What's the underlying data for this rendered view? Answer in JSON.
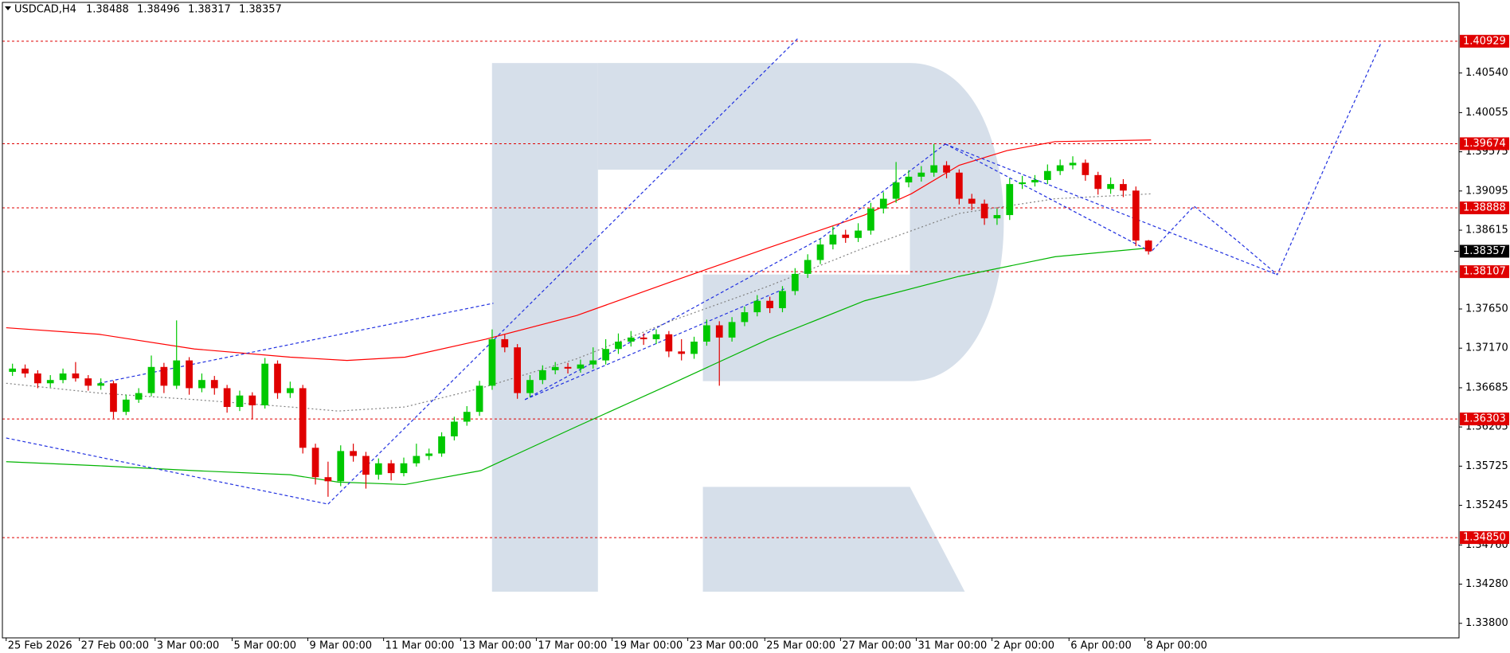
{
  "chart_data": {
    "type": "candlestick",
    "symbol": "USDCAD,H4",
    "up_color": "#00c800",
    "down_color": "#e00000",
    "ylim": [
      1.33622,
      1.41395
    ],
    "yticks": [
      {
        "value": 1.338,
        "label": "1.33800"
      },
      {
        "value": 1.3428,
        "label": "1.34280"
      },
      {
        "value": 1.3476,
        "label": "1.34760"
      },
      1.35245,
      1.35725,
      1.36205,
      1.36685,
      {
        "value": 1.3717,
        "label": "1.37170"
      },
      {
        "value": 1.3765,
        "label": "1.37650"
      },
      1.38615,
      1.39095,
      1.39575,
      1.40055,
      {
        "value": 1.4054,
        "label": "1.40540"
      }
    ],
    "xlim": [
      -0.8,
      114.6
    ],
    "xticks": [
      {
        "value": -0.5,
        "label": "25 Feb 2026"
      },
      {
        "value": 5.3,
        "label": "27 Feb 00:00"
      },
      {
        "value": 11.3,
        "label": "3 Mar 00:00"
      },
      {
        "value": 17.4,
        "label": "5 Mar 00:00"
      },
      {
        "value": 23.4,
        "label": "9 Mar 00:00"
      },
      {
        "value": 29.4,
        "label": "11 Mar 00:00"
      },
      {
        "value": 35.5,
        "label": "13 Mar 00:00"
      },
      {
        "value": 41.5,
        "label": "17 Mar 00:00"
      },
      {
        "value": 47.5,
        "label": "19 Mar 00:00"
      },
      {
        "value": 53.5,
        "label": "23 Mar 00:00"
      },
      {
        "value": 59.6,
        "label": "25 Mar 00:00"
      },
      {
        "value": 65.6,
        "label": "27 Mar 00:00"
      },
      {
        "value": 71.6,
        "label": "31 Mar 00:00"
      },
      {
        "value": 77.6,
        "label": "2 Apr 00:00"
      },
      {
        "value": 83.7,
        "label": "6 Apr 00:00"
      },
      {
        "value": 89.7,
        "label": "8 Apr 00:00"
      }
    ],
    "open": [
      1.3688,
      1.3692,
      1.3686,
      1.3674,
      1.3678,
      1.3686,
      1.368,
      1.3671,
      1.3674,
      1.3639,
      1.3654,
      1.3662,
      1.3694,
      1.3671,
      1.3702,
      1.3668,
      1.3678,
      1.3668,
      1.3645,
      1.3659,
      1.3647,
      1.3698,
      1.3662,
      1.3668,
      1.3595,
      1.3559,
      1.3554,
      1.3591,
      1.3585,
      1.3562,
      1.3576,
      1.3564,
      1.3576,
      1.3585,
      1.3588,
      1.3609,
      1.3627,
      1.3639,
      1.3671,
      1.3728,
      1.3718,
      1.3662,
      1.3678,
      1.369,
      1.3694,
      1.3692,
      1.3697,
      1.3702,
      1.3716,
      1.3725,
      1.373,
      1.3728,
      1.3734,
      1.3713,
      1.371,
      1.3725,
      1.3745,
      1.373,
      1.3749,
      1.3761,
      1.3775,
      1.3766,
      1.3787,
      1.3808,
      1.3825,
      1.3844,
      1.3856,
      1.3852,
      1.3861,
      1.3888,
      1.39,
      1.392,
      1.3927,
      1.3932,
      1.3941,
      1.3932,
      1.39,
      1.3894,
      1.3876,
      1.388,
      1.3918,
      1.392,
      1.3923,
      1.3934,
      1.3941,
      1.3944,
      1.3929,
      1.3912,
      1.3918,
      1.391,
      1.38488
    ],
    "high": [
      1.3698,
      1.3697,
      1.369,
      1.3684,
      1.3692,
      1.37,
      1.3684,
      1.368,
      1.3677,
      1.366,
      1.3668,
      1.3708,
      1.3699,
      1.3751,
      1.3706,
      1.3686,
      1.3683,
      1.3672,
      1.3665,
      1.3663,
      1.3705,
      1.3702,
      1.3676,
      1.3672,
      1.36,
      1.3578,
      1.3598,
      1.36,
      1.359,
      1.3582,
      1.358,
      1.3583,
      1.36,
      1.3594,
      1.3614,
      1.3633,
      1.3646,
      1.3677,
      1.374,
      1.3734,
      1.3722,
      1.3684,
      1.3696,
      1.37,
      1.3699,
      1.3703,
      1.3718,
      1.3728,
      1.3735,
      1.3738,
      1.3735,
      1.374,
      1.3738,
      1.3728,
      1.3731,
      1.3752,
      1.375,
      1.3755,
      1.3768,
      1.3782,
      1.378,
      1.3793,
      1.3815,
      1.3832,
      1.3851,
      1.3866,
      1.3862,
      1.387,
      1.3895,
      1.3908,
      1.3945,
      1.3935,
      1.394,
      1.3967,
      1.3946,
      1.3936,
      1.3906,
      1.3899,
      1.3888,
      1.3925,
      1.3928,
      1.3929,
      1.3942,
      1.3948,
      1.3952,
      1.3948,
      1.3933,
      1.3926,
      1.3924,
      1.3915,
      1.38496
    ],
    "low": [
      1.3683,
      1.3681,
      1.3668,
      1.3669,
      1.3674,
      1.3676,
      1.3665,
      1.3666,
      1.3631,
      1.3635,
      1.365,
      1.3658,
      1.3662,
      1.3667,
      1.366,
      1.3663,
      1.366,
      1.3638,
      1.364,
      1.363,
      1.3643,
      1.3655,
      1.3656,
      1.3588,
      1.355,
      1.3535,
      1.3548,
      1.3578,
      1.3545,
      1.3556,
      1.3555,
      1.356,
      1.3572,
      1.358,
      1.3584,
      1.3604,
      1.3622,
      1.3634,
      1.3666,
      1.3712,
      1.3655,
      1.3657,
      1.3673,
      1.3685,
      1.3686,
      1.3687,
      1.3692,
      1.3697,
      1.371,
      1.3719,
      1.3721,
      1.3722,
      1.3706,
      1.3702,
      1.3704,
      1.372,
      1.3671,
      1.3725,
      1.3744,
      1.3756,
      1.376,
      1.3761,
      1.3782,
      1.3803,
      1.382,
      1.3838,
      1.3846,
      1.3847,
      1.3856,
      1.3882,
      1.3895,
      1.3914,
      1.3921,
      1.3927,
      1.3925,
      1.3893,
      1.3886,
      1.3868,
      1.3868,
      1.3874,
      1.3912,
      1.3915,
      1.3918,
      1.3929,
      1.3936,
      1.3922,
      1.3905,
      1.3906,
      1.3902,
      1.3842,
      1.38317
    ],
    "close": [
      1.3692,
      1.3686,
      1.3674,
      1.3678,
      1.3686,
      1.368,
      1.3671,
      1.3674,
      1.3639,
      1.3654,
      1.3662,
      1.3694,
      1.3671,
      1.3702,
      1.3668,
      1.3678,
      1.3668,
      1.3645,
      1.3659,
      1.3647,
      1.3698,
      1.3662,
      1.3668,
      1.3595,
      1.3559,
      1.3554,
      1.3591,
      1.3585,
      1.3562,
      1.3576,
      1.3564,
      1.3576,
      1.3585,
      1.3588,
      1.3609,
      1.3627,
      1.3639,
      1.3671,
      1.3728,
      1.3718,
      1.3662,
      1.3678,
      1.369,
      1.3694,
      1.3692,
      1.3697,
      1.3702,
      1.3716,
      1.3725,
      1.373,
      1.3728,
      1.3734,
      1.3713,
      1.371,
      1.3725,
      1.3745,
      1.373,
      1.3749,
      1.3761,
      1.3775,
      1.3766,
      1.3787,
      1.3808,
      1.3825,
      1.3844,
      1.3856,
      1.3852,
      1.3861,
      1.3888,
      1.39,
      1.392,
      1.3927,
      1.3932,
      1.3941,
      1.3932,
      1.39,
      1.3894,
      1.3876,
      1.388,
      1.3918,
      1.392,
      1.3923,
      1.3934,
      1.3941,
      1.3944,
      1.3929,
      1.3912,
      1.3918,
      1.391,
      1.38488,
      1.38357
    ],
    "levels": [
      1.40929,
      1.39674,
      1.38888,
      1.38107,
      1.36303,
      {
        "value": 1.3485,
        "label": "1.34850"
      }
    ],
    "level_color": "#e00000",
    "lines": [
      {
        "color": "#ff0000",
        "style": "solid",
        "x": [
          -0.5,
          6.85,
          14.42,
          22,
          26.5,
          31.1,
          37.5,
          44.7,
          52.3,
          59.9,
          67.5,
          71.2,
          75,
          78.8,
          82.6,
          90.2
        ],
        "y": [
          1.3742,
          1.3734,
          1.3716,
          1.3706,
          1.3702,
          1.3706,
          1.3728,
          1.3757,
          1.3799,
          1.384,
          1.388,
          1.3906,
          1.3941,
          1.3959,
          1.397,
          1.3972
        ]
      },
      {
        "color": "#00b400",
        "style": "solid",
        "x": [
          -0.5,
          6.85,
          14.42,
          22,
          25.8,
          31.1,
          37.1,
          44.7,
          52.3,
          59.9,
          67.5,
          75,
          82.6,
          90.2
        ],
        "y": [
          1.3578,
          1.3573,
          1.3567,
          1.3562,
          1.3553,
          1.355,
          1.3567,
          1.3621,
          1.3674,
          1.3728,
          1.3775,
          1.3805,
          1.3829,
          1.384
        ]
      },
      {
        "color": "#808080",
        "style": "dotted",
        "x": [
          -0.5,
          6.85,
          14.42,
          22,
          25.8,
          31.1,
          37.1,
          44.7,
          52.3,
          59.9,
          67.5,
          75,
          82.6,
          90.2
        ],
        "y": [
          1.3674,
          1.3662,
          1.3654,
          1.3645,
          1.364,
          1.3645,
          1.3668,
          1.3704,
          1.3751,
          1.3793,
          1.384,
          1.3882,
          1.39,
          1.3906
        ]
      },
      {
        "color": "#2030e0",
        "style": "dashed",
        "x": [
          -0.5,
          25
        ],
        "y": [
          1.3607,
          1.3526
        ]
      },
      {
        "color": "#2030e0",
        "style": "dashed",
        "x": [
          6.85,
          38.1
        ],
        "y": [
          1.3674,
          1.3772
        ]
      },
      {
        "color": "#2030e0",
        "style": "dashed",
        "x": [
          25,
          62.2
        ],
        "y": [
          1.3526,
          1.4096
        ]
      },
      {
        "color": "#2030e0",
        "style": "dashed",
        "x": [
          40.6,
          64.1,
          73.9
        ],
        "y": [
          1.3654,
          1.3852,
          1.3967
        ]
      },
      {
        "color": "#2030e0",
        "style": "dashed",
        "x": [
          40.6,
          61.2
        ],
        "y": [
          1.3654,
          1.379
        ]
      },
      {
        "color": "#2030e0",
        "style": "dashed",
        "x": [
          73.9,
          90.2,
          93.6,
          97,
          100.2,
          104.2,
          108.4
        ],
        "y": [
          1.3967,
          1.3835,
          1.3891,
          1.3849,
          1.3807,
          1.3947,
          1.409
        ]
      },
      {
        "color": "#2030e0",
        "style": "dashed",
        "x": [
          73.9,
          100.2
        ],
        "y": [
          1.3967,
          1.3807
        ]
      }
    ]
  }
}
